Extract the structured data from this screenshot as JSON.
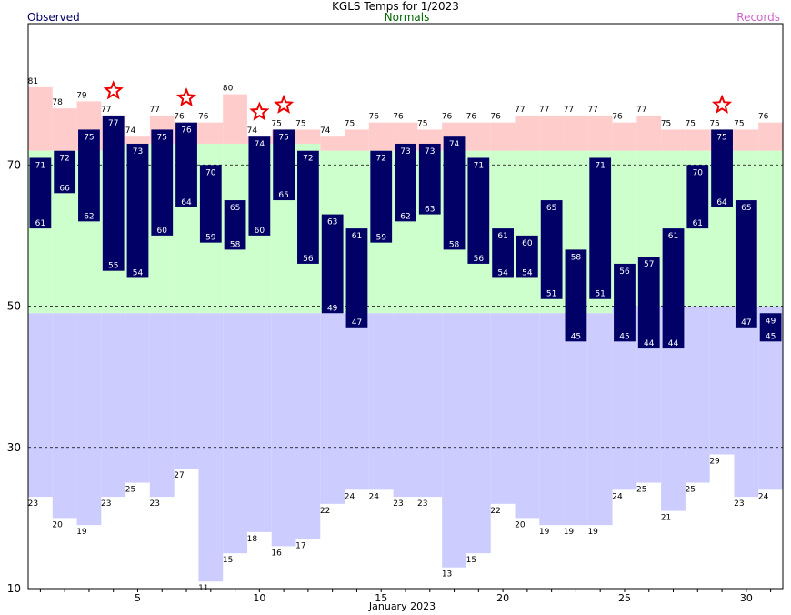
{
  "chart_data": {
    "type": "bar",
    "title": "KGLS Temps for 1/2023",
    "xlabel": "January 2023",
    "ylabel": "",
    "xlim": [
      0.5,
      31.5
    ],
    "ylim": [
      10,
      90
    ],
    "yticks": [
      10,
      30,
      50,
      70
    ],
    "xticks": [
      5,
      10,
      15,
      20,
      25,
      30
    ],
    "grid": "dashed at 30, 50, 70",
    "legend": {
      "observed": "Observed",
      "normals": "Normals",
      "records": "Records"
    },
    "colors": {
      "observed": "#000066",
      "normals_text": "#006600",
      "records_text": "#cc66cc",
      "record_high_fill": "#ffcccc",
      "normal_fill": "#ccffcc",
      "record_low_fill": "#ccccff",
      "star": "#ee0000"
    },
    "days": [
      1,
      2,
      3,
      4,
      5,
      6,
      7,
      8,
      9,
      10,
      11,
      12,
      13,
      14,
      15,
      16,
      17,
      18,
      19,
      20,
      21,
      22,
      23,
      24,
      25,
      26,
      27,
      28,
      29,
      30,
      31
    ],
    "observed_high": [
      71,
      72,
      75,
      77,
      73,
      75,
      76,
      70,
      65,
      74,
      75,
      72,
      63,
      61,
      72,
      73,
      73,
      74,
      71,
      61,
      60,
      65,
      58,
      71,
      56,
      57,
      61,
      70,
      75,
      65,
      49
    ],
    "observed_low": [
      61,
      66,
      62,
      55,
      54,
      60,
      64,
      59,
      58,
      60,
      65,
      56,
      49,
      47,
      59,
      62,
      63,
      58,
      56,
      54,
      54,
      51,
      45,
      51,
      45,
      44,
      44,
      61,
      64,
      47,
      45
    ],
    "record_high": [
      81,
      78,
      79,
      77,
      74,
      77,
      76,
      76,
      80,
      74,
      75,
      75,
      74,
      75,
      76,
      76,
      75,
      76,
      76,
      76,
      77,
      77,
      77,
      77,
      76,
      77,
      75,
      75,
      75,
      75,
      76
    ],
    "record_low": [
      23,
      20,
      19,
      23,
      25,
      23,
      27,
      11,
      15,
      18,
      16,
      17,
      22,
      24,
      24,
      23,
      23,
      13,
      15,
      22,
      20,
      19,
      19,
      19,
      24,
      25,
      21,
      25,
      29,
      23,
      24
    ],
    "normal_high": [
      72,
      72,
      72,
      72,
      73,
      73,
      73,
      73,
      73,
      73,
      73,
      73,
      72,
      72,
      72,
      72,
      72,
      72,
      72,
      72,
      72,
      72,
      72,
      72,
      72,
      72,
      72,
      72,
      72,
      72,
      72
    ],
    "normal_low": [
      49,
      49,
      49,
      49,
      49,
      49,
      49,
      49,
      49,
      49,
      49,
      49,
      49,
      49,
      49,
      49,
      49,
      49,
      49,
      49,
      49,
      49,
      49,
      49,
      50,
      50,
      50,
      50,
      50,
      50,
      50
    ],
    "record_set_days": [
      4,
      7,
      10,
      11,
      29
    ]
  }
}
